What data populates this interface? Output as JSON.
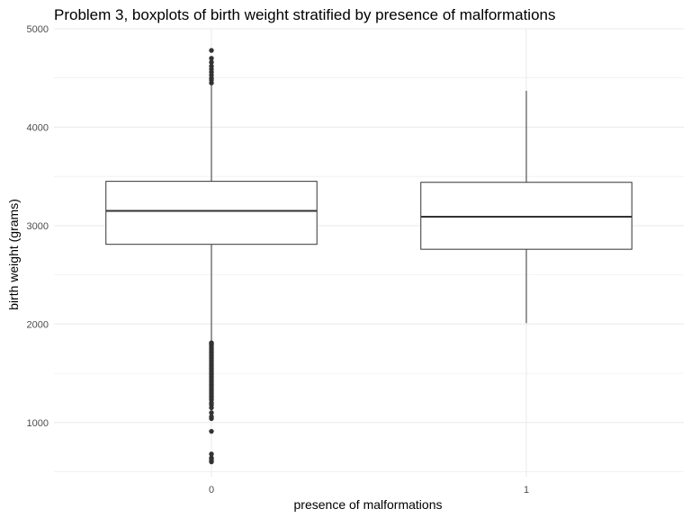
{
  "chart_data": {
    "type": "boxplot",
    "title": "Problem 3, boxplots of birth weight stratified by presence of malformations",
    "xlabel": "presence of malformations",
    "ylabel": "birth weight (grams)",
    "ylim": [
      450,
      5000
    ],
    "yticks": [
      1000,
      2000,
      3000,
      4000,
      5000
    ],
    "categories": [
      "0",
      "1"
    ],
    "boxes": [
      {
        "category": "0",
        "whisker_low": 1820,
        "q1": 2810,
        "median": 3150,
        "q3": 3450,
        "whisker_high": 4440,
        "outliers": [
          4450,
          4480,
          4500,
          4530,
          4560,
          4590,
          4620,
          4660,
          4700,
          4780,
          600,
          620,
          640,
          680,
          910,
          1040,
          1060,
          1100,
          1150,
          1180,
          1200,
          1230,
          1250,
          1270,
          1290,
          1310,
          1330,
          1350,
          1370,
          1390,
          1410,
          1430,
          1450,
          1470,
          1490,
          1510,
          1530,
          1550,
          1570,
          1590,
          1610,
          1630,
          1650,
          1670,
          1690,
          1710,
          1730,
          1750,
          1770,
          1790,
          1800,
          1810
        ]
      },
      {
        "category": "1",
        "whisker_low": 2010,
        "q1": 2760,
        "median": 3090,
        "q3": 3440,
        "whisker_high": 4370,
        "outliers": []
      }
    ],
    "grid": true,
    "box_fill": "#ffffff",
    "line_color": "#333333",
    "grid_color": "#ebebeb"
  }
}
